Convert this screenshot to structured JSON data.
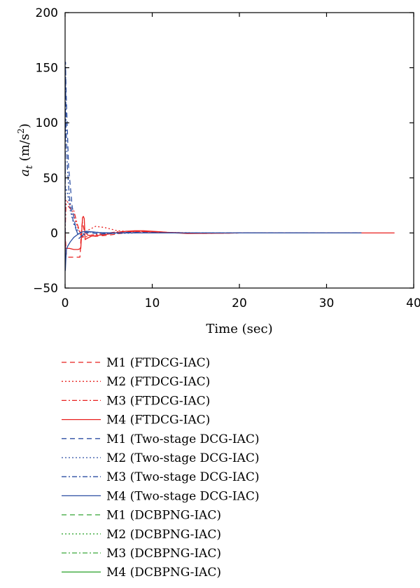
{
  "chart_data": {
    "type": "line",
    "title": "",
    "xlabel": "Time (sec)",
    "ylabel": {
      "main": "a",
      "sub": "t",
      "unit": " (m/s",
      "sup": "2",
      "close": ")"
    },
    "xlim": [
      0,
      40
    ],
    "ylim": [
      -50,
      200
    ],
    "xticks": [
      0,
      10,
      20,
      30,
      40
    ],
    "yticks": [
      -50,
      0,
      50,
      100,
      150,
      200
    ],
    "grid": false,
    "legend_position": "below",
    "series": [
      {
        "name": "M1 (FTDCG-IAC)",
        "color": "#e8201f",
        "dash": "7,5",
        "x": [
          0,
          0.15,
          0.3,
          0.6,
          1.2,
          1.7,
          1.75,
          1.8,
          1.9,
          2.0,
          2.2,
          2.6,
          3.5,
          5,
          8,
          12,
          16,
          20,
          34
        ],
        "y": [
          0,
          -20,
          -22,
          -22,
          -22,
          -22,
          -16,
          -8,
          5,
          10,
          2,
          -2,
          -3,
          -2,
          1.5,
          0.5,
          -0.4,
          0,
          0
        ]
      },
      {
        "name": "M2 (FTDCG-IAC)",
        "color": "#e8201f",
        "dash": "2,3",
        "x": [
          0,
          0.1,
          0.3,
          0.6,
          1.0,
          1.5,
          2.0,
          2.5,
          3.5,
          4.5,
          6,
          8,
          12,
          16,
          20,
          34
        ],
        "y": [
          0,
          30,
          28,
          25,
          15,
          4,
          -4,
          2,
          6,
          5,
          2,
          1,
          0.5,
          0,
          0,
          0
        ]
      },
      {
        "name": "M3 (FTDCG-IAC)",
        "color": "#e8201f",
        "dash": "7,3,2,3",
        "x": [
          0,
          0.1,
          0.3,
          0.6,
          1.0,
          1.4,
          1.8,
          2.2,
          3,
          4,
          6,
          8,
          12,
          16,
          20,
          34
        ],
        "y": [
          0,
          26,
          25,
          22,
          20,
          8,
          -2,
          -4,
          -2,
          -1,
          1,
          1.5,
          0.5,
          -0.3,
          0,
          0
        ]
      },
      {
        "name": "M4 (FTDCG-IAC)",
        "color": "#e8201f",
        "dash": "",
        "x": [
          0,
          0.05,
          0.5,
          1.0,
          1.5,
          1.8,
          2.0,
          2.1,
          2.2,
          2.3,
          2.5,
          3,
          4,
          5,
          6,
          7,
          8,
          9,
          10,
          11,
          12,
          14,
          16,
          18,
          20,
          25,
          30,
          37.8
        ],
        "y": [
          0,
          -14,
          -14,
          -15,
          -15,
          -14,
          14,
          15,
          13,
          -6,
          -5,
          -3,
          -2,
          -1,
          0.5,
          1.5,
          2,
          2,
          1.5,
          1,
          0.3,
          -0.5,
          -0.4,
          -0.2,
          0,
          0,
          0,
          0
        ]
      },
      {
        "name": "M1 (Two-stage DCG-IAC)",
        "color": "#2c4fa3",
        "dash": "7,5",
        "x": [
          0,
          0.05,
          0.15,
          0.4,
          0.8,
          1.2,
          1.6,
          2.0,
          2.4,
          3,
          4,
          5,
          7,
          10,
          14,
          20,
          34
        ],
        "y": [
          0,
          150,
          120,
          60,
          25,
          5,
          -5,
          -2,
          1,
          0,
          -1,
          -0.5,
          0.5,
          0.3,
          0,
          0,
          0
        ]
      },
      {
        "name": "M2 (Two-stage DCG-IAC)",
        "color": "#2c4fa3",
        "dash": "2,3",
        "x": [
          0,
          0.05,
          0.15,
          0.3,
          0.6,
          1.0,
          1.5,
          2.0,
          2.5,
          3,
          4,
          6,
          9,
          14,
          20,
          34
        ],
        "y": [
          0,
          42,
          40,
          35,
          20,
          8,
          2,
          -1,
          0.5,
          1,
          0,
          -0.5,
          0.2,
          0,
          0,
          0
        ]
      },
      {
        "name": "M3 (Two-stage DCG-IAC)",
        "color": "#2c4fa3",
        "dash": "7,3,2,3",
        "x": [
          0,
          0.05,
          0.1,
          0.25,
          0.5,
          0.9,
          1.3,
          1.8,
          2.3,
          3,
          4,
          5,
          7,
          10,
          14,
          20,
          34
        ],
        "y": [
          0,
          155,
          100,
          60,
          32,
          12,
          2,
          -3,
          -1,
          1,
          0.5,
          -0.5,
          0.3,
          0,
          0,
          0,
          0
        ]
      },
      {
        "name": "M4 (Two-stage DCG-IAC)",
        "color": "#2c4fa3",
        "dash": "",
        "x": [
          0,
          0.03,
          0.08,
          0.15,
          0.3,
          0.6,
          1.0,
          1.5,
          2.0,
          2.5,
          3,
          4,
          6,
          9,
          14,
          20,
          34
        ],
        "y": [
          0,
          -34,
          -25,
          -15,
          -12,
          -8,
          -4,
          -1,
          1,
          1.5,
          1,
          0.3,
          0,
          0,
          0,
          0,
          0
        ]
      },
      {
        "name": "M1 (DCBPNG-IAC)",
        "color": "#3aa83a",
        "dash": "7,5",
        "x": [],
        "y": []
      },
      {
        "name": "M2 (DCBPNG-IAC)",
        "color": "#3aa83a",
        "dash": "2,3",
        "x": [],
        "y": []
      },
      {
        "name": "M3 (DCBPNG-IAC)",
        "color": "#3aa83a",
        "dash": "7,3,2,3",
        "x": [],
        "y": []
      },
      {
        "name": "M4 (DCBPNG-IAC)",
        "color": "#3aa83a",
        "dash": "",
        "x": [],
        "y": []
      }
    ]
  }
}
